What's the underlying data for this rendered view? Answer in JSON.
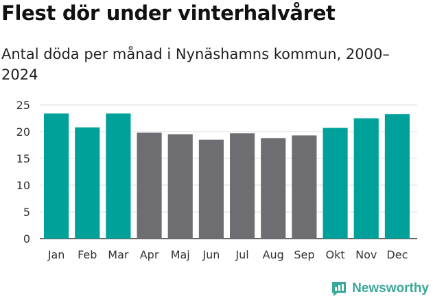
{
  "colors": {
    "highlight": "#00a19a",
    "neutral": "#6d6d72",
    "grid": "#dddddd",
    "axis": "#333333",
    "brand": "#3aa897"
  },
  "chart_data": {
    "type": "bar",
    "title": "Flest dör under vinterhalvåret",
    "subtitle": "Antal döda per månad i Nynäshamns kommun, 2000–2024",
    "categories": [
      "Jan",
      "Feb",
      "Mar",
      "Apr",
      "Maj",
      "Jun",
      "Jul",
      "Aug",
      "Sep",
      "Okt",
      "Nov",
      "Dec"
    ],
    "values": [
      23.4,
      20.8,
      23.4,
      19.8,
      19.5,
      18.5,
      19.7,
      18.8,
      19.3,
      20.7,
      22.5,
      23.3
    ],
    "highlighted": [
      true,
      true,
      true,
      false,
      false,
      false,
      false,
      false,
      false,
      true,
      true,
      true
    ],
    "ylim": [
      0,
      25
    ],
    "yticks": [
      0,
      5,
      10,
      15,
      20,
      25
    ],
    "xlabel": "",
    "ylabel": "",
    "grid": true
  },
  "brand": {
    "name": "Newsworthy",
    "logo_icon": "bar-chart-speech-icon"
  }
}
